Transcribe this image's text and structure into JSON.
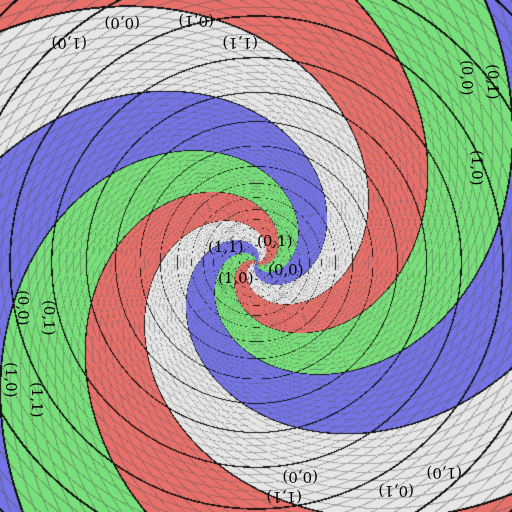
{
  "image": {
    "description_free": true,
    "colors": {
      "red": "#e8706a",
      "green": "#78e07a",
      "blue": "#7474e6",
      "white": "#e6e6e6",
      "fine_grid": "#555555",
      "coarse_grid": "#111111"
    },
    "quadrant_labels": {
      "top_left": "(1,1)",
      "top_right": "(0,1)",
      "bottom_left": "(1,0)",
      "bottom_right": "(0,0)"
    },
    "edge_labels": [
      {
        "id": "top-left-a",
        "text": "(0,0)"
      },
      {
        "id": "top-left-b",
        "text": "(0,1)"
      },
      {
        "id": "top-left-c",
        "text": "(1,0)"
      },
      {
        "id": "top-left-d",
        "text": "(1,1)"
      },
      {
        "id": "right-a",
        "text": "(0,0)"
      },
      {
        "id": "right-b",
        "text": "(0,1)"
      },
      {
        "id": "right-c",
        "text": "(1,0)"
      },
      {
        "id": "left-a",
        "text": "(0,0)"
      },
      {
        "id": "left-b",
        "text": "(0,1)"
      },
      {
        "id": "left-c",
        "text": "(1,0)"
      },
      {
        "id": "left-d",
        "text": "(1,1)"
      },
      {
        "id": "bottom-a",
        "text": "(0,0)"
      },
      {
        "id": "bottom-b",
        "text": "(0,1)"
      },
      {
        "id": "bottom-c",
        "text": "(1,0)"
      },
      {
        "id": "bottom-d",
        "text": "(1,1)"
      }
    ]
  }
}
